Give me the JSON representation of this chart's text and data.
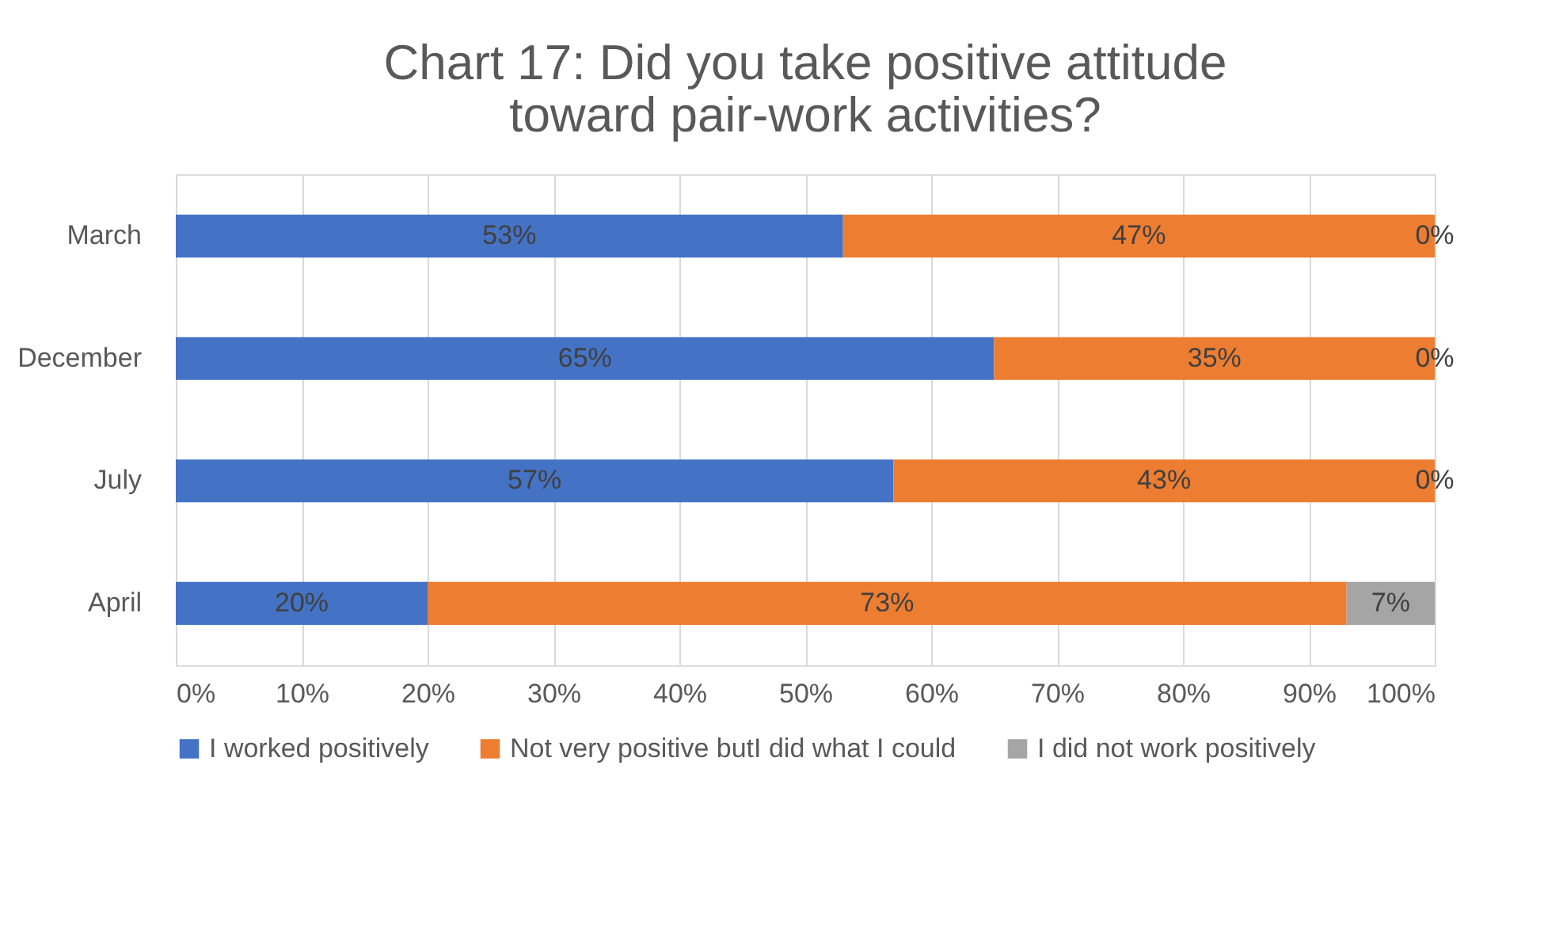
{
  "chart_data": {
    "type": "bar",
    "orientation": "horizontal",
    "stacked": true,
    "title": "Chart 17: Did you take positive attitude toward pair-work activities?",
    "categories": [
      "March",
      "December",
      "July",
      "April"
    ],
    "series": [
      {
        "name": "I worked positively",
        "color": "#4472c4",
        "values": [
          53,
          65,
          57,
          20
        ],
        "value_labels": [
          "53%",
          "65%",
          "57%",
          "20%"
        ]
      },
      {
        "name": "Not very positive butI did what I could",
        "color": "#ed7d31",
        "values": [
          47,
          35,
          43,
          73
        ],
        "value_labels": [
          "47%",
          "35%",
          "43%",
          "73%"
        ]
      },
      {
        "name": "I did not work positively",
        "color": "#a5a5a5",
        "values": [
          0,
          0,
          0,
          7
        ],
        "value_labels": [
          "0%",
          "0%",
          "0%",
          "7%"
        ]
      }
    ],
    "xlim": [
      0,
      100
    ],
    "xticks": [
      {
        "value": 0,
        "label": "0%"
      },
      {
        "value": 10,
        "label": "10%"
      },
      {
        "value": 20,
        "label": "20%"
      },
      {
        "value": 30,
        "label": "30%"
      },
      {
        "value": 40,
        "label": "40%"
      },
      {
        "value": 50,
        "label": "50%"
      },
      {
        "value": 60,
        "label": "60%"
      },
      {
        "value": 70,
        "label": "70%"
      },
      {
        "value": 80,
        "label": "80%"
      },
      {
        "value": 90,
        "label": "90%"
      },
      {
        "value": 100,
        "label": "100%"
      }
    ],
    "grid": "x",
    "legend": "bottom"
  }
}
